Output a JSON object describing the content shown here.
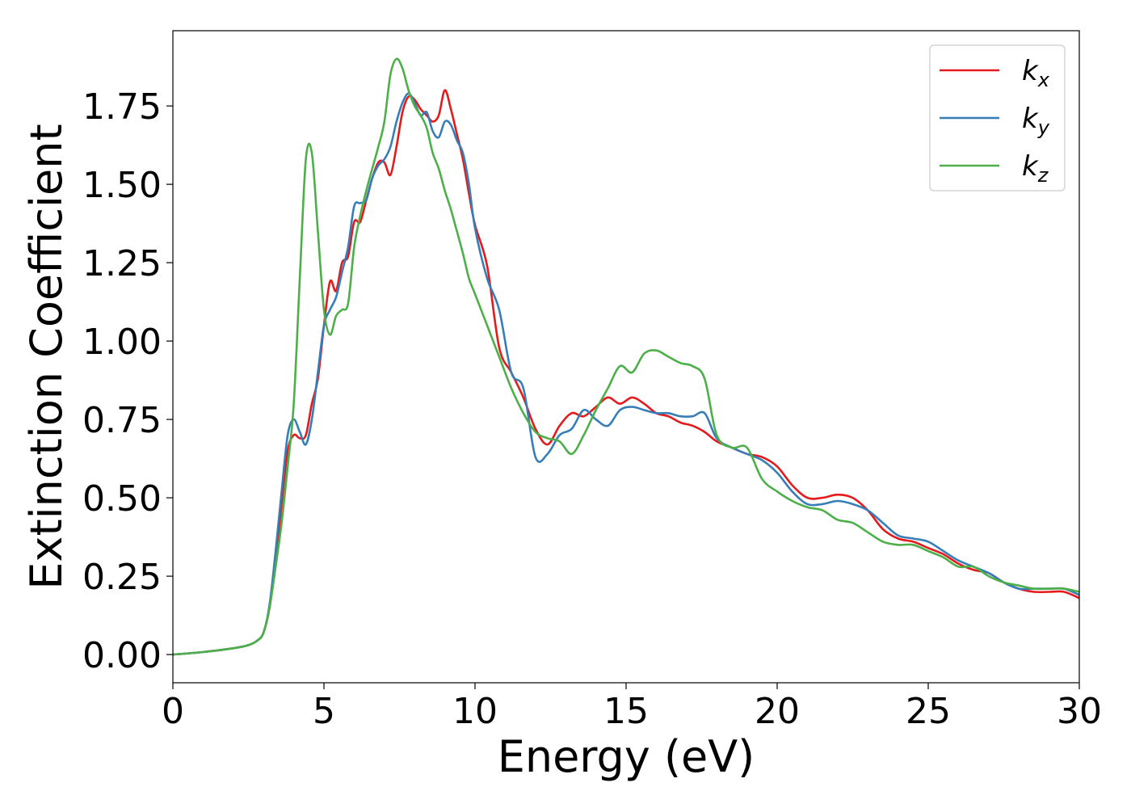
{
  "chart_data": {
    "type": "line",
    "xlabel": "Energy (eV)",
    "ylabel": "Extinction Coefficient",
    "xlim": [
      0,
      30
    ],
    "ylim": [
      -0.09,
      1.99
    ],
    "xticks": [
      "0",
      "5",
      "10",
      "15",
      "20",
      "25",
      "30"
    ],
    "xtick_values": [
      0,
      5,
      10,
      15,
      20,
      25,
      30
    ],
    "yticks": [
      "0.00",
      "0.25",
      "0.50",
      "0.75",
      "1.00",
      "1.25",
      "1.50",
      "1.75"
    ],
    "ytick_values": [
      0,
      0.25,
      0.5,
      0.75,
      1.0,
      1.25,
      1.5,
      1.75
    ],
    "grid": false,
    "legend_position": "top-right",
    "series": [
      {
        "name": "k",
        "subscript": "x",
        "color": "#e41a1c",
        "x": [
          0,
          1,
          2,
          2.5,
          2.8,
          3.0,
          3.2,
          3.4,
          3.6,
          3.8,
          4.0,
          4.2,
          4.4,
          4.6,
          4.8,
          5.0,
          5.2,
          5.4,
          5.6,
          5.8,
          6.0,
          6.2,
          6.4,
          6.6,
          6.8,
          7.0,
          7.2,
          7.4,
          7.6,
          7.8,
          8.0,
          8.2,
          8.4,
          8.6,
          8.8,
          9.0,
          9.2,
          9.4,
          9.6,
          9.8,
          10.0,
          10.4,
          10.8,
          11.2,
          11.6,
          12.0,
          12.4,
          12.8,
          13.2,
          13.6,
          14.0,
          14.4,
          14.8,
          15.2,
          15.6,
          16.0,
          16.4,
          16.8,
          17.2,
          17.6,
          18.0,
          18.5,
          19.0,
          19.5,
          20.0,
          20.5,
          21.0,
          21.5,
          22.0,
          22.5,
          23.0,
          23.5,
          24.0,
          24.5,
          25.0,
          25.5,
          26.0,
          26.5,
          27.0,
          27.5,
          28.0,
          28.5,
          29.0,
          29.5,
          30.0
        ],
        "y": [
          0.0,
          0.008,
          0.02,
          0.03,
          0.045,
          0.07,
          0.15,
          0.3,
          0.48,
          0.65,
          0.7,
          0.69,
          0.7,
          0.8,
          0.88,
          1.05,
          1.19,
          1.16,
          1.25,
          1.27,
          1.38,
          1.38,
          1.45,
          1.52,
          1.57,
          1.57,
          1.53,
          1.62,
          1.73,
          1.78,
          1.77,
          1.74,
          1.72,
          1.7,
          1.72,
          1.8,
          1.74,
          1.66,
          1.58,
          1.47,
          1.37,
          1.24,
          0.98,
          0.9,
          0.82,
          0.72,
          0.67,
          0.73,
          0.77,
          0.76,
          0.79,
          0.82,
          0.8,
          0.82,
          0.8,
          0.77,
          0.76,
          0.74,
          0.73,
          0.71,
          0.68,
          0.66,
          0.64,
          0.63,
          0.6,
          0.54,
          0.5,
          0.5,
          0.51,
          0.5,
          0.46,
          0.4,
          0.37,
          0.36,
          0.34,
          0.32,
          0.29,
          0.27,
          0.26,
          0.23,
          0.21,
          0.2,
          0.2,
          0.2,
          0.18
        ]
      },
      {
        "name": "k",
        "subscript": "y",
        "color": "#377eb8",
        "x": [
          0,
          1,
          2,
          2.5,
          2.8,
          3.0,
          3.2,
          3.4,
          3.6,
          3.8,
          4.0,
          4.2,
          4.4,
          4.6,
          4.8,
          5.0,
          5.2,
          5.4,
          5.6,
          5.8,
          6.0,
          6.2,
          6.4,
          6.6,
          6.8,
          7.0,
          7.2,
          7.4,
          7.6,
          7.8,
          8.0,
          8.2,
          8.4,
          8.6,
          8.8,
          9.0,
          9.2,
          9.4,
          9.6,
          9.8,
          10.0,
          10.4,
          10.8,
          11.2,
          11.6,
          12.0,
          12.4,
          12.8,
          13.2,
          13.6,
          14.0,
          14.4,
          14.8,
          15.2,
          15.6,
          16.0,
          16.4,
          16.8,
          17.2,
          17.6,
          18.0,
          18.5,
          19.0,
          19.5,
          20.0,
          20.5,
          21.0,
          21.5,
          22.0,
          22.5,
          23.0,
          23.5,
          24.0,
          24.5,
          25.0,
          25.5,
          26.0,
          26.5,
          27.0,
          27.5,
          28.0,
          28.5,
          29.0,
          29.5,
          30.0
        ],
        "y": [
          0.0,
          0.008,
          0.02,
          0.03,
          0.045,
          0.07,
          0.16,
          0.33,
          0.52,
          0.7,
          0.75,
          0.71,
          0.67,
          0.75,
          0.9,
          1.05,
          1.1,
          1.14,
          1.22,
          1.3,
          1.43,
          1.44,
          1.45,
          1.52,
          1.56,
          1.58,
          1.62,
          1.7,
          1.76,
          1.79,
          1.76,
          1.72,
          1.73,
          1.67,
          1.65,
          1.7,
          1.69,
          1.64,
          1.6,
          1.5,
          1.36,
          1.2,
          1.1,
          0.9,
          0.85,
          0.63,
          0.64,
          0.7,
          0.72,
          0.78,
          0.75,
          0.73,
          0.78,
          0.79,
          0.78,
          0.77,
          0.77,
          0.76,
          0.76,
          0.77,
          0.69,
          0.66,
          0.64,
          0.62,
          0.58,
          0.52,
          0.48,
          0.48,
          0.49,
          0.48,
          0.46,
          0.42,
          0.38,
          0.37,
          0.36,
          0.33,
          0.3,
          0.28,
          0.26,
          0.23,
          0.21,
          0.21,
          0.21,
          0.21,
          0.19
        ]
      },
      {
        "name": "k",
        "subscript": "z",
        "color": "#4daf4a",
        "x": [
          0,
          1,
          2,
          2.5,
          2.8,
          3.0,
          3.2,
          3.4,
          3.6,
          3.8,
          4.0,
          4.2,
          4.4,
          4.6,
          4.8,
          5.0,
          5.2,
          5.4,
          5.6,
          5.8,
          6.0,
          6.2,
          6.4,
          6.6,
          6.8,
          7.0,
          7.2,
          7.4,
          7.6,
          7.8,
          8.0,
          8.2,
          8.4,
          8.6,
          8.8,
          9.0,
          9.2,
          9.4,
          9.6,
          9.8,
          10.0,
          10.4,
          10.8,
          11.2,
          11.6,
          12.0,
          12.4,
          12.8,
          13.2,
          13.6,
          14.0,
          14.4,
          14.8,
          15.2,
          15.6,
          16.0,
          16.4,
          16.8,
          17.2,
          17.6,
          18.0,
          18.5,
          19.0,
          19.5,
          20.0,
          20.5,
          21.0,
          21.5,
          22.0,
          22.5,
          23.0,
          23.5,
          24.0,
          24.5,
          25.0,
          25.5,
          26.0,
          26.5,
          27.0,
          27.5,
          28.0,
          28.5,
          29.0,
          29.5,
          30.0
        ],
        "y": [
          0.0,
          0.008,
          0.02,
          0.03,
          0.045,
          0.07,
          0.15,
          0.28,
          0.42,
          0.6,
          0.8,
          1.2,
          1.58,
          1.6,
          1.35,
          1.1,
          1.02,
          1.08,
          1.1,
          1.12,
          1.3,
          1.4,
          1.48,
          1.55,
          1.62,
          1.7,
          1.85,
          1.9,
          1.87,
          1.8,
          1.75,
          1.72,
          1.68,
          1.6,
          1.55,
          1.48,
          1.42,
          1.35,
          1.28,
          1.2,
          1.15,
          1.05,
          0.95,
          0.85,
          0.77,
          0.71,
          0.69,
          0.68,
          0.64,
          0.7,
          0.78,
          0.85,
          0.92,
          0.9,
          0.96,
          0.97,
          0.95,
          0.93,
          0.92,
          0.88,
          0.7,
          0.66,
          0.66,
          0.56,
          0.52,
          0.49,
          0.47,
          0.46,
          0.43,
          0.42,
          0.39,
          0.36,
          0.35,
          0.35,
          0.33,
          0.31,
          0.28,
          0.28,
          0.25,
          0.23,
          0.22,
          0.21,
          0.21,
          0.21,
          0.2
        ]
      }
    ]
  }
}
